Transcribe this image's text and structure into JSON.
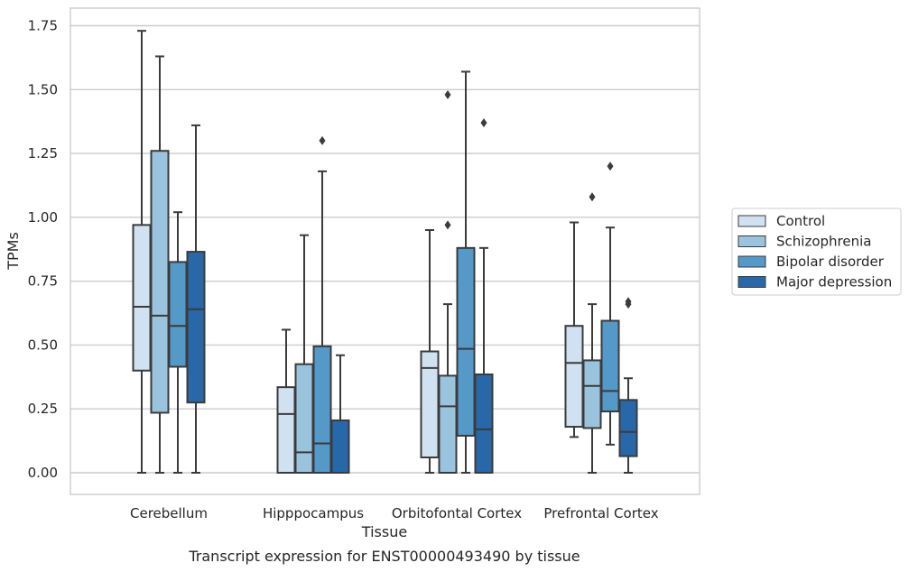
{
  "chart_data": {
    "type": "box",
    "caption": "Transcript expression for ENST00000493490 by tissue",
    "xlabel": "Tissue",
    "ylabel": "TPMs",
    "ylim": [
      -0.085,
      1.82
    ],
    "yticks": [
      0.0,
      0.25,
      0.5,
      0.75,
      1.0,
      1.25,
      1.5,
      1.75
    ],
    "ytick_labels": [
      "0.00",
      "0.25",
      "0.50",
      "0.75",
      "1.00",
      "1.25",
      "1.50",
      "1.75"
    ],
    "grid": "horizontal",
    "legend_position": "right",
    "categories": [
      "Cerebellum",
      "Hipppocampus",
      "Orbitofontal Cortex",
      "Prefrontal Cortex"
    ],
    "series": [
      {
        "name": "Control",
        "color": "#d0e1f2",
        "boxes": [
          {
            "whislo": 0.0,
            "q1": 0.4,
            "med": 0.65,
            "q3": 0.97,
            "whishi": 1.73,
            "fliers": []
          },
          {
            "whislo": 0.0,
            "q1": 0.0,
            "med": 0.23,
            "q3": 0.335,
            "whishi": 0.56,
            "fliers": []
          },
          {
            "whislo": 0.0,
            "q1": 0.06,
            "med": 0.41,
            "q3": 0.475,
            "whishi": 0.95,
            "fliers": []
          },
          {
            "whislo": 0.14,
            "q1": 0.18,
            "med": 0.43,
            "q3": 0.575,
            "whishi": 0.98,
            "fliers": []
          }
        ]
      },
      {
        "name": "Schizophrenia",
        "color": "#9ac4de",
        "boxes": [
          {
            "whislo": 0.0,
            "q1": 0.235,
            "med": 0.615,
            "q3": 1.26,
            "whishi": 1.63,
            "fliers": []
          },
          {
            "whislo": 0.0,
            "q1": 0.0,
            "med": 0.08,
            "q3": 0.425,
            "whishi": 0.93,
            "fliers": []
          },
          {
            "whislo": 0.0,
            "q1": 0.0,
            "med": 0.26,
            "q3": 0.38,
            "whishi": 0.66,
            "fliers": [
              0.97,
              1.48
            ]
          },
          {
            "whislo": 0.0,
            "q1": 0.175,
            "med": 0.34,
            "q3": 0.44,
            "whishi": 0.66,
            "fliers": [
              1.08
            ]
          }
        ]
      },
      {
        "name": "Bipolar disorder",
        "color": "#5599c9",
        "boxes": [
          {
            "whislo": 0.0,
            "q1": 0.415,
            "med": 0.575,
            "q3": 0.825,
            "whishi": 1.02,
            "fliers": []
          },
          {
            "whislo": 0.0,
            "q1": 0.0,
            "med": 0.115,
            "q3": 0.495,
            "whishi": 1.18,
            "fliers": [
              1.3
            ]
          },
          {
            "whislo": 0.0,
            "q1": 0.145,
            "med": 0.485,
            "q3": 0.88,
            "whishi": 1.57,
            "fliers": []
          },
          {
            "whislo": 0.11,
            "q1": 0.24,
            "med": 0.32,
            "q3": 0.595,
            "whishi": 0.96,
            "fliers": [
              1.2
            ]
          }
        ]
      },
      {
        "name": "Major depression",
        "color": "#2868a9",
        "boxes": [
          {
            "whislo": 0.0,
            "q1": 0.275,
            "med": 0.64,
            "q3": 0.865,
            "whishi": 1.36,
            "fliers": []
          },
          {
            "whislo": 0.0,
            "q1": 0.0,
            "med": 0.0,
            "q3": 0.205,
            "whishi": 0.46,
            "fliers": []
          },
          {
            "whislo": 0.0,
            "q1": 0.0,
            "med": 0.17,
            "q3": 0.385,
            "whishi": 0.88,
            "fliers": [
              1.37
            ]
          },
          {
            "whislo": 0.0,
            "q1": 0.065,
            "med": 0.16,
            "q3": 0.285,
            "whishi": 0.37,
            "fliers": [
              0.66,
              0.67
            ]
          }
        ]
      }
    ]
  }
}
